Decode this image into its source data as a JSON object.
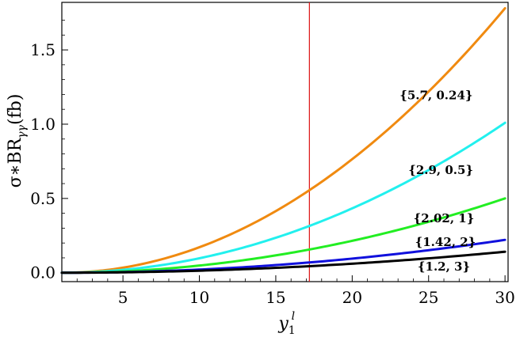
{
  "chart_data": {
    "type": "line",
    "title": "",
    "xlabel": "y",
    "xlabel_sub": "1",
    "xlabel_sup": "l",
    "ylabel": "σ∗BR",
    "ylabel_sub": "γγ",
    "ylabel_unit": "(fb)",
    "xlim": [
      1,
      30.2
    ],
    "ylim": [
      -0.06,
      1.82
    ],
    "x_ticks": [
      5,
      10,
      15,
      20,
      25,
      30
    ],
    "y_ticks": [
      0.0,
      0.5,
      1.0,
      1.5
    ],
    "x_tick_labels": [
      "5",
      "10",
      "15",
      "20",
      "25",
      "30"
    ],
    "y_tick_labels": [
      "0.0",
      "0.5",
      "1.0",
      "1.5"
    ],
    "x_scale": "linear",
    "y_scale": "linear",
    "grid": false,
    "model": "y = a * (x - 1)^2",
    "vertical_line": {
      "x": 17.2,
      "color": "#dd1111"
    },
    "series": [
      {
        "name": "{5.7, 0.24}",
        "coeff": 0.002117,
        "color": "#f08a10",
        "label_x": 25.5,
        "label_y": 1.19
      },
      {
        "name": "{2.9, 0.5}",
        "coeff": 0.0012,
        "color": "#22f0ee",
        "label_x": 25.8,
        "label_y": 0.685
      },
      {
        "name": "{2.02, 1}",
        "coeff": 0.000595,
        "color": "#22ee22",
        "label_x": 26.0,
        "label_y": 0.36
      },
      {
        "name": "{1.42, 2}",
        "coeff": 0.000263,
        "color": "#1010dd",
        "label_x": 26.1,
        "label_y": 0.2
      },
      {
        "name": "{1.2, 3}",
        "coeff": 0.000168,
        "color": "#000000",
        "label_x": 26.0,
        "label_y": 0.035
      }
    ]
  }
}
